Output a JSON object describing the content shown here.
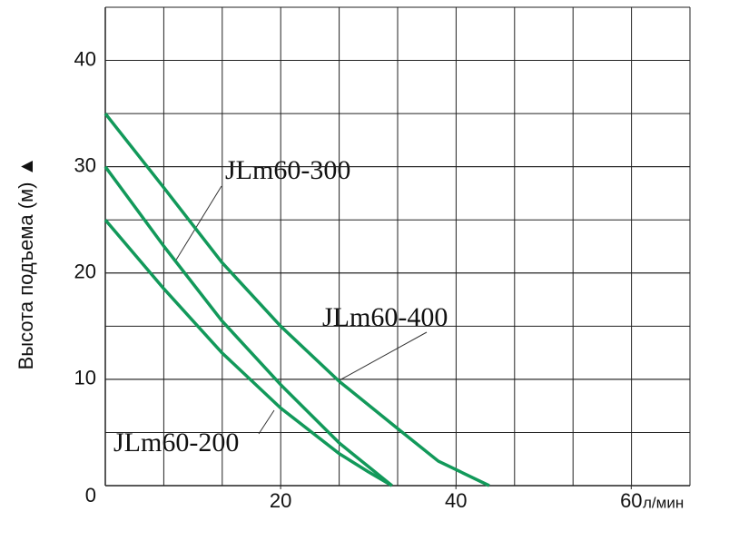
{
  "chart_data": {
    "type": "line",
    "xlabel": "л/мин",
    "ylabel": "Высота подъема (м) ▲",
    "xlim": [
      0,
      66.7
    ],
    "xticks": [
      20,
      40,
      60
    ],
    "ylim": [
      0,
      45
    ],
    "yticks": [
      0,
      10,
      20,
      30,
      40
    ],
    "grid": true,
    "series": [
      {
        "name": "JLm60-400",
        "color": "#12995a",
        "x": [
          0,
          6.7,
          13.3,
          20,
          26.7,
          33.3,
          38,
          43.8
        ],
        "values": [
          35,
          28,
          21,
          15,
          9.8,
          5.4,
          2.3,
          0
        ]
      },
      {
        "name": "JLm60-300",
        "color": "#12995a",
        "x": [
          0,
          6.7,
          13.3,
          20,
          26.7,
          30,
          32.7
        ],
        "values": [
          30,
          22.5,
          15.5,
          9.5,
          4,
          1.8,
          0
        ]
      },
      {
        "name": "JLm60-200",
        "color": "#12995a",
        "x": [
          0,
          6.7,
          13.3,
          20,
          26.7,
          30,
          32.7
        ],
        "values": [
          25,
          18.5,
          12.5,
          7.3,
          3,
          1.3,
          0
        ]
      }
    ]
  }
}
